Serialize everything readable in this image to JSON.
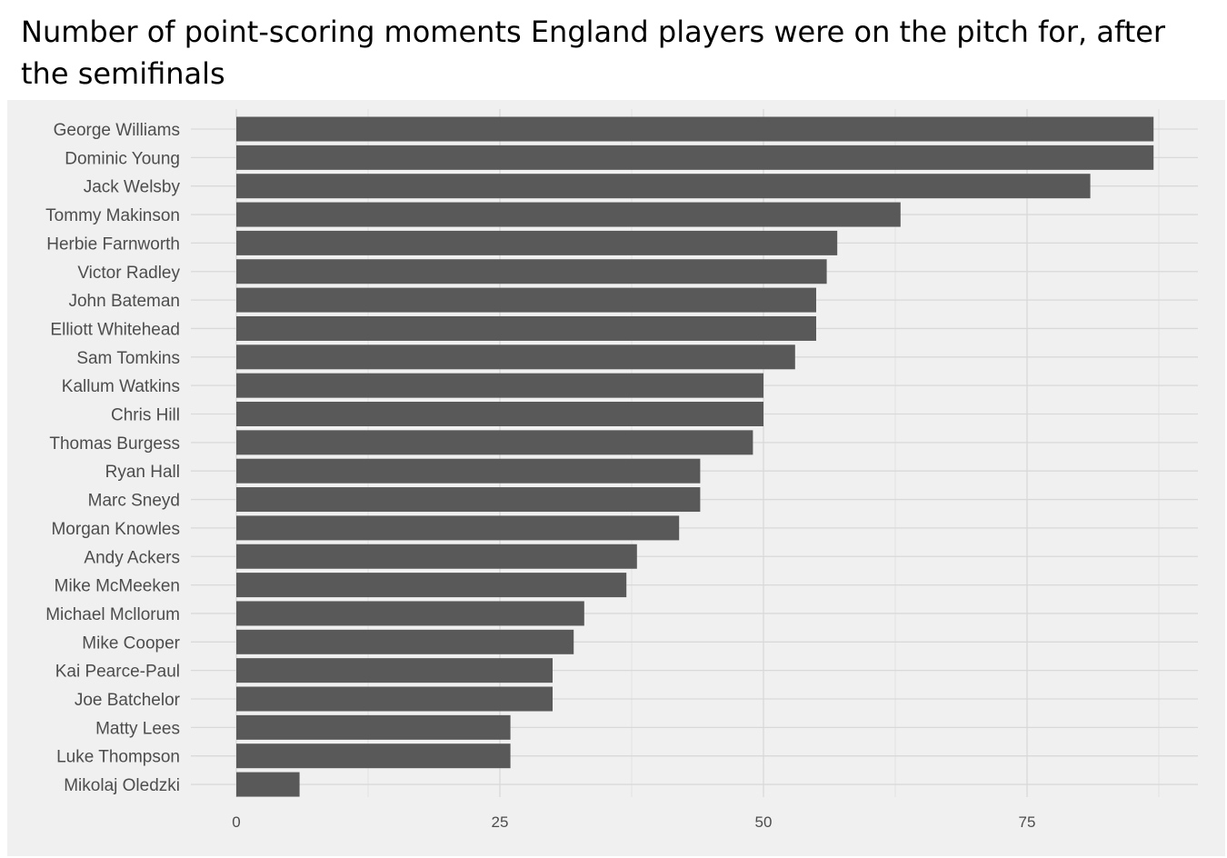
{
  "title": "Number of point-scoring moments England players were on the pitch for, after the semifinals",
  "colors": {
    "bar": "#595959",
    "panel": "#f0f0f0",
    "grid": "#d9d9d9",
    "text": "#4d4d4d"
  },
  "chart_data": {
    "type": "bar",
    "orientation": "horizontal",
    "title": "Number of point-scoring moments England players were on the pitch for, after the semifinals",
    "categories": [
      "George Williams",
      "Dominic Young",
      "Jack Welsby",
      "Tommy Makinson",
      "Herbie Farnworth",
      "Victor Radley",
      "John Bateman",
      "Elliott Whitehead",
      "Sam Tomkins",
      "Kallum Watkins",
      "Chris Hill",
      "Thomas Burgess",
      "Ryan Hall",
      "Marc Sneyd",
      "Morgan Knowles",
      "Andy Ackers",
      "Mike McMeeken",
      "Michael Mcllorum",
      "Mike Cooper",
      "Kai Pearce-Paul",
      "Joe Batchelor",
      "Matty Lees",
      "Luke Thompson",
      "Mikolaj Oledzki"
    ],
    "values": [
      87,
      87,
      81,
      63,
      57,
      56,
      55,
      55,
      53,
      50,
      50,
      49,
      44,
      44,
      42,
      38,
      37,
      33,
      32,
      30,
      30,
      26,
      26,
      6
    ],
    "xticks": [
      "0",
      "25",
      "50",
      "75"
    ],
    "xlim": [
      -21.5,
      91.5
    ],
    "xlabel": "",
    "ylabel": "",
    "grid": true,
    "legend": "none"
  }
}
